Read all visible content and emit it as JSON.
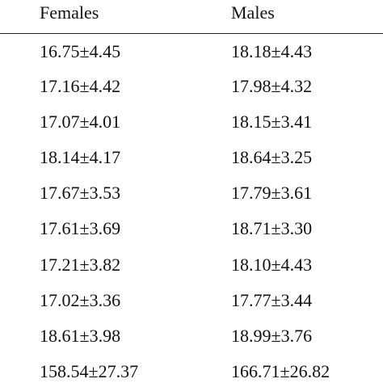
{
  "table": {
    "headers": [
      "Females",
      "Males"
    ],
    "rows": [
      [
        "16.75±4.45",
        "18.18±4.43"
      ],
      [
        "17.16±4.42",
        "17.98±4.32"
      ],
      [
        "17.07±4.01",
        "18.15±3.41"
      ],
      [
        "18.14±4.17",
        "18.64±3.25"
      ],
      [
        "17.67±3.53",
        "17.79±3.61"
      ],
      [
        "17.61±3.69",
        "18.71±3.30"
      ],
      [
        "17.21±3.82",
        "18.10±4.43"
      ],
      [
        "17.02±3.36",
        "17.77±3.44"
      ],
      [
        "18.61±3.98",
        "18.99±3.76"
      ],
      [
        "158.54±27.37",
        "166.71±26.82"
      ]
    ]
  }
}
